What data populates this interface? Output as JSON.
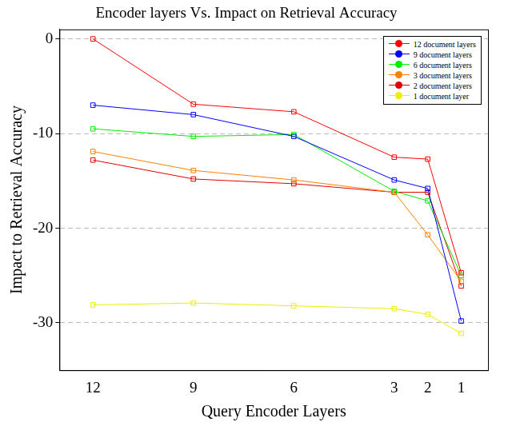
{
  "chart_data": {
    "type": "line",
    "title": "Encoder layers Vs. Impact on Retrieval Accuracy",
    "x_label": "Query Encoder Layers",
    "y_label": "Impact to Retrieval Accuracy",
    "x": [
      12,
      9,
      6,
      3,
      2,
      1
    ],
    "xlim": [
      13,
      0.2
    ],
    "xticks": [
      12,
      9,
      6,
      3,
      2,
      1
    ],
    "ylim": [
      -35,
      1
    ],
    "yticks": [
      0,
      -10,
      -20,
      -30
    ],
    "grid": true,
    "legend": "upper right",
    "marker": "square",
    "series": [
      {
        "name": "12 document layers",
        "color": "#ff0000",
        "values": [
          0,
          -6.9,
          -7.7,
          -12.5,
          -12.7,
          -24.7
        ]
      },
      {
        "name": "9 document layers",
        "color": "#0000ff",
        "values": [
          -7.0,
          -8.0,
          -10.3,
          -14.9,
          -15.8,
          -29.8
        ]
      },
      {
        "name": "6 document layers",
        "color": "#00ee00",
        "values": [
          -9.5,
          -10.3,
          -10.1,
          -16.1,
          -17.1,
          -25.0
        ]
      },
      {
        "name": "3 document layers",
        "color": "#ff8000",
        "values": [
          -11.9,
          -13.9,
          -14.9,
          -16.2,
          -20.7,
          -25.6
        ]
      },
      {
        "name": "2 document layers",
        "color": "#e00000",
        "values": [
          -12.8,
          -14.8,
          -15.3,
          -16.2,
          -16.2,
          -26.1
        ]
      },
      {
        "name": "1 document layer",
        "color": "#eeee00",
        "values": [
          -28.1,
          -27.9,
          -28.2,
          -28.5,
          -29.1,
          -31.1
        ]
      }
    ]
  }
}
